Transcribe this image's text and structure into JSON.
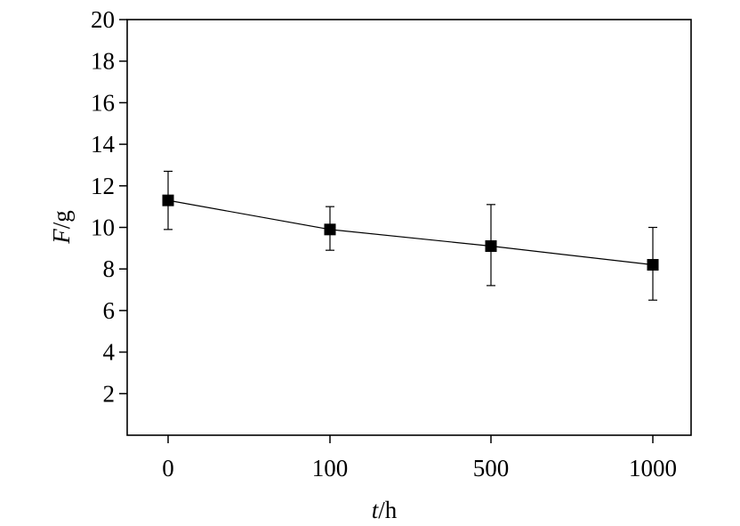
{
  "chart_data": {
    "type": "line",
    "title": "",
    "xlabel": {
      "symbol": "t",
      "unit": "/h"
    },
    "ylabel": {
      "symbol": "F",
      "unit": "/g"
    },
    "categories": [
      "0",
      "100",
      "500",
      "1000"
    ],
    "ylim": [
      0,
      20
    ],
    "yticks": [
      2,
      4,
      6,
      8,
      10,
      12,
      14,
      16,
      18,
      20
    ],
    "series": [
      {
        "values": [
          11.3,
          9.9,
          9.1,
          8.2
        ],
        "err_low": [
          9.9,
          8.9,
          7.2,
          6.5
        ],
        "err_high": [
          12.7,
          11.0,
          11.1,
          10.0
        ],
        "marker": "square",
        "color": "#000000"
      }
    ],
    "grid": false,
    "legend": "none"
  }
}
